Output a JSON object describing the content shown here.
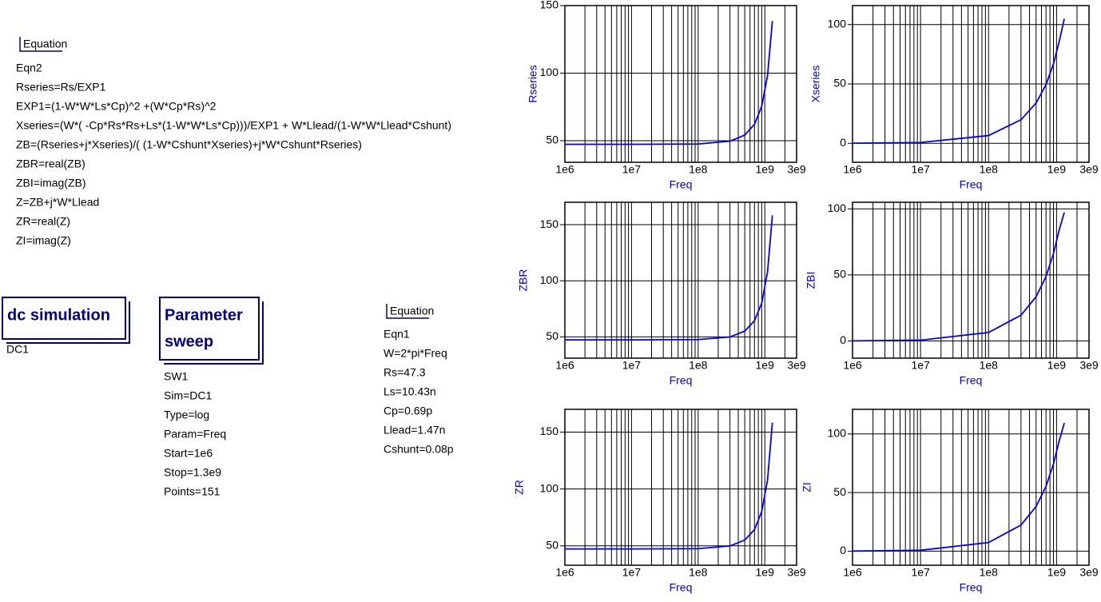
{
  "equations": [
    {
      "label": "Equation",
      "name": "Eqn2",
      "lines": [
        "Rseries=Rs/EXP1",
        "EXP1=(1-W*W*Ls*Cp)^2 +(W*Cp*Rs)^2",
        "Xseries=(W*( -Cp*Rs*Rs+Ls*(1-W*W*Ls*Cp)))/EXP1 + W*Llead/(1-W*W*Llead*Cshunt)",
        "ZB=(Rseries+j*Xseries)/( (1-W*Cshunt*Xseries)+j*W*Cshunt*Rseries)",
        "ZBR=real(ZB)",
        "ZBI=imag(ZB)",
        "Z=ZB+j*W*Llead",
        "ZR=real(Z)",
        "ZI=imag(Z)"
      ]
    },
    {
      "label": "Equation",
      "name": "Eqn1",
      "lines": [
        "W=2*pi*Freq",
        "Rs=47.3",
        "Ls=10.43n",
        "Cp=0.69p",
        "Llead=1.47n",
        "Cshunt=0.08p"
      ]
    }
  ],
  "dc_simulation": {
    "title": "dc simulation",
    "name": "DC1"
  },
  "parameter_sweep": {
    "title_lines": [
      "Parameter",
      "sweep"
    ],
    "name": "SW1",
    "lines": [
      "Sim=DC1",
      "Type=log",
      "Param=Freq",
      "Start=1e6",
      "Stop=1.3e9",
      "Points=151"
    ]
  },
  "chart_data": [
    {
      "type": "line",
      "ylabel": "Rseries",
      "xlabel": "Freq",
      "log_x": true,
      "grid": true,
      "x": [
        1000000.0,
        10000000.0,
        100000000.0,
        300000000.0,
        500000000.0,
        700000000.0,
        900000000.0,
        1100000000.0,
        1300000000.0
      ],
      "series": [
        {
          "color": "#0000ff",
          "values": [
            47.3,
            47.3,
            47.55,
            49.62,
            54.15,
            62.11,
            75.47,
            98.24,
            138.59
          ]
        }
      ],
      "xlim": [
        1000000.0,
        3000000000.0
      ],
      "xticks": [
        {
          "value": 1000000.0,
          "label": "1e6"
        },
        {
          "value": 10000000.0,
          "label": "1e7"
        },
        {
          "value": 100000000.0,
          "label": "1e8"
        },
        {
          "value": 1000000000.0,
          "label": "1e9"
        },
        {
          "value": 3000000000.0,
          "label": "3e9"
        }
      ],
      "minor_xticks": [
        2000000.0,
        3000000.0,
        4000000.0,
        5000000.0,
        6000000.0,
        7000000.0,
        8000000.0,
        9000000.0,
        20000000.0,
        30000000.0,
        40000000.0,
        50000000.0,
        60000000.0,
        70000000.0,
        80000000.0,
        90000000.0,
        200000000.0,
        300000000.0,
        400000000.0,
        500000000.0,
        600000000.0,
        700000000.0,
        800000000.0,
        900000000.0,
        2000000000.0
      ],
      "ylim": [
        34,
        150
      ],
      "yticks": [
        50,
        100,
        150
      ]
    },
    {
      "type": "line",
      "ylabel": "Xseries",
      "xlabel": "Freq",
      "log_x": true,
      "grid": true,
      "x": [
        1000000.0,
        10000000.0,
        100000000.0,
        300000000.0,
        500000000.0,
        700000000.0,
        900000000.0,
        1100000000.0,
        1300000000.0
      ],
      "series": [
        {
          "color": "#0000ff",
          "values": [
            0.065,
            0.651,
            6.52,
            19.82,
            33.92,
            49.42,
            66.86,
            86.31,
            104.92
          ]
        }
      ],
      "xlim": [
        1000000.0,
        3000000000.0
      ],
      "xticks": [
        {
          "value": 1000000.0,
          "label": "1e6"
        },
        {
          "value": 10000000.0,
          "label": "1e7"
        },
        {
          "value": 100000000.0,
          "label": "1e8"
        },
        {
          "value": 1000000000.0,
          "label": "1e9"
        },
        {
          "value": 3000000000.0,
          "label": "3e9"
        }
      ],
      "minor_xticks": [
        2000000.0,
        3000000.0,
        4000000.0,
        5000000.0,
        6000000.0,
        7000000.0,
        8000000.0,
        9000000.0,
        20000000.0,
        30000000.0,
        40000000.0,
        50000000.0,
        60000000.0,
        70000000.0,
        80000000.0,
        90000000.0,
        200000000.0,
        300000000.0,
        400000000.0,
        500000000.0,
        600000000.0,
        700000000.0,
        800000000.0,
        900000000.0,
        2000000000.0
      ],
      "ylim": [
        -16,
        116
      ],
      "yticks": [
        0,
        50,
        100
      ]
    },
    {
      "type": "line",
      "ylabel": "ZBR",
      "xlabel": "Freq",
      "log_x": true,
      "grid": true,
      "x": [
        1000000.0,
        10000000.0,
        100000000.0,
        300000000.0,
        500000000.0,
        700000000.0,
        900000000.0,
        1100000000.0,
        1300000000.0
      ],
      "series": [
        {
          "color": "#0000ff",
          "values": [
            47.3,
            47.3,
            47.58,
            49.92,
            55.07,
            64.3,
            80.15,
            107.98,
            158.25
          ]
        }
      ],
      "xlim": [
        1000000.0,
        3000000000.0
      ],
      "xticks": [
        {
          "value": 1000000.0,
          "label": "1e6"
        },
        {
          "value": 10000000.0,
          "label": "1e7"
        },
        {
          "value": 100000000.0,
          "label": "1e8"
        },
        {
          "value": 1000000000.0,
          "label": "1e9"
        },
        {
          "value": 3000000000.0,
          "label": "3e9"
        }
      ],
      "minor_xticks": [
        2000000.0,
        3000000.0,
        4000000.0,
        5000000.0,
        6000000.0,
        7000000.0,
        8000000.0,
        9000000.0,
        20000000.0,
        30000000.0,
        40000000.0,
        50000000.0,
        60000000.0,
        70000000.0,
        80000000.0,
        90000000.0,
        200000000.0,
        300000000.0,
        400000000.0,
        500000000.0,
        600000000.0,
        700000000.0,
        800000000.0,
        900000000.0,
        2000000000.0
      ],
      "ylim": [
        31,
        170
      ],
      "yticks": [
        50,
        100,
        150
      ]
    },
    {
      "type": "line",
      "ylabel": "ZBI",
      "xlabel": "Freq",
      "log_x": true,
      "grid": true,
      "x": [
        1000000.0,
        10000000.0,
        100000000.0,
        300000000.0,
        500000000.0,
        700000000.0,
        900000000.0,
        1100000000.0,
        1300000000.0
      ],
      "series": [
        {
          "color": "#0000ff",
          "values": [
            0.065,
            0.64,
            6.41,
            19.51,
            33.46,
            48.87,
            66.12,
            84.48,
            97.26
          ]
        }
      ],
      "xlim": [
        1000000.0,
        3000000000.0
      ],
      "xticks": [
        {
          "value": 1000000.0,
          "label": "1e6"
        },
        {
          "value": 10000000.0,
          "label": "1e7"
        },
        {
          "value": 100000000.0,
          "label": "1e8"
        },
        {
          "value": 1000000000.0,
          "label": "1e9"
        },
        {
          "value": 3000000000.0,
          "label": "3e9"
        }
      ],
      "minor_xticks": [
        2000000.0,
        3000000.0,
        4000000.0,
        5000000.0,
        6000000.0,
        7000000.0,
        8000000.0,
        9000000.0,
        20000000.0,
        30000000.0,
        40000000.0,
        50000000.0,
        60000000.0,
        70000000.0,
        80000000.0,
        90000000.0,
        200000000.0,
        300000000.0,
        400000000.0,
        500000000.0,
        600000000.0,
        700000000.0,
        800000000.0,
        900000000.0,
        2000000000.0
      ],
      "ylim": [
        -13,
        105
      ],
      "yticks": [
        0,
        50,
        100
      ]
    },
    {
      "type": "line",
      "ylabel": "ZR",
      "xlabel": "Freq",
      "log_x": true,
      "grid": true,
      "x": [
        1000000.0,
        10000000.0,
        100000000.0,
        300000000.0,
        500000000.0,
        700000000.0,
        900000000.0,
        1100000000.0,
        1300000000.0
      ],
      "series": [
        {
          "color": "#0000ff",
          "values": [
            47.3,
            47.3,
            47.58,
            49.92,
            55.07,
            64.3,
            80.15,
            107.98,
            158.25
          ]
        }
      ],
      "xlim": [
        1000000.0,
        3000000000.0
      ],
      "xticks": [
        {
          "value": 1000000.0,
          "label": "1e6"
        },
        {
          "value": 10000000.0,
          "label": "1e7"
        },
        {
          "value": 100000000.0,
          "label": "1e8"
        },
        {
          "value": 1000000000.0,
          "label": "1e9"
        },
        {
          "value": 3000000000.0,
          "label": "3e9"
        }
      ],
      "minor_xticks": [
        2000000.0,
        3000000.0,
        4000000.0,
        5000000.0,
        6000000.0,
        7000000.0,
        8000000.0,
        9000000.0,
        20000000.0,
        30000000.0,
        40000000.0,
        50000000.0,
        60000000.0,
        70000000.0,
        80000000.0,
        90000000.0,
        200000000.0,
        300000000.0,
        400000000.0,
        500000000.0,
        600000000.0,
        700000000.0,
        800000000.0,
        900000000.0,
        2000000000.0
      ],
      "ylim": [
        33,
        170
      ],
      "yticks": [
        50,
        100,
        150
      ]
    },
    {
      "type": "line",
      "ylabel": "ZI",
      "xlabel": "Freq",
      "log_x": true,
      "grid": true,
      "x": [
        1000000.0,
        10000000.0,
        100000000.0,
        300000000.0,
        500000000.0,
        700000000.0,
        900000000.0,
        1100000000.0,
        1300000000.0
      ],
      "series": [
        {
          "color": "#0000ff",
          "values": [
            0.074,
            0.732,
            7.33,
            22.28,
            38.08,
            55.33,
            74.43,
            94.64,
            109.27
          ]
        }
      ],
      "xlim": [
        1000000.0,
        3000000000.0
      ],
      "xticks": [
        {
          "value": 1000000.0,
          "label": "1e6"
        },
        {
          "value": 10000000.0,
          "label": "1e7"
        },
        {
          "value": 100000000.0,
          "label": "1e8"
        },
        {
          "value": 1000000000.0,
          "label": "1e9"
        },
        {
          "value": 3000000000.0,
          "label": "3e9"
        }
      ],
      "minor_xticks": [
        2000000.0,
        3000000.0,
        4000000.0,
        5000000.0,
        6000000.0,
        7000000.0,
        8000000.0,
        9000000.0,
        20000000.0,
        30000000.0,
        40000000.0,
        50000000.0,
        60000000.0,
        70000000.0,
        80000000.0,
        90000000.0,
        200000000.0,
        300000000.0,
        400000000.0,
        500000000.0,
        600000000.0,
        700000000.0,
        800000000.0,
        900000000.0,
        2000000000.0
      ],
      "ylim": [
        -12,
        121
      ],
      "yticks": [
        0,
        50,
        100
      ]
    }
  ]
}
